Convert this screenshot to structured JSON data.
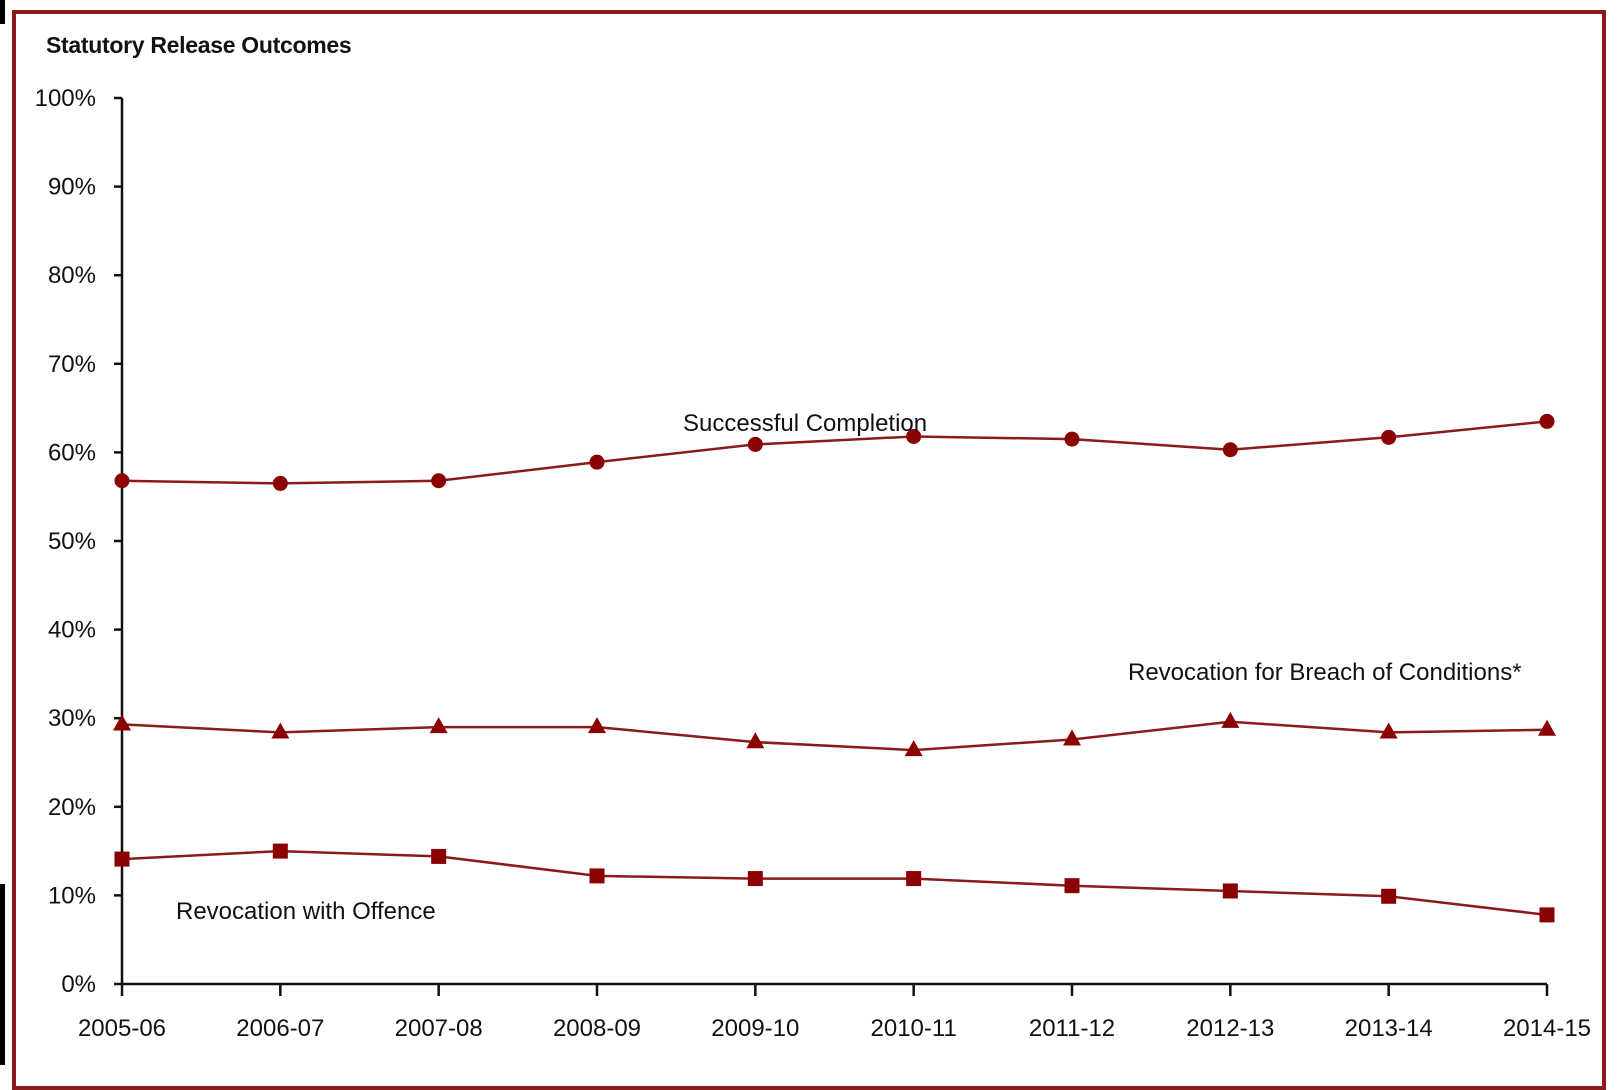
{
  "chart_data": {
    "type": "line",
    "title": "Statutory Release Outcomes",
    "xlabel": "",
    "ylabel": "",
    "categories": [
      "2005-06",
      "2006-07",
      "2007-08",
      "2008-09",
      "2009-10",
      "2010-11",
      "2011-12",
      "2012-13",
      "2013-14",
      "2014-15"
    ],
    "ylim": [
      0,
      100
    ],
    "y_ticks": [
      "0%",
      "10%",
      "20%",
      "30%",
      "40%",
      "50%",
      "60%",
      "70%",
      "80%",
      "90%",
      "100%"
    ],
    "grid": false,
    "legend": "none",
    "series": [
      {
        "name": "Successful Completion",
        "marker": "circle",
        "values": [
          56.8,
          56.5,
          56.8,
          58.9,
          60.9,
          61.8,
          61.5,
          60.3,
          61.7,
          63.5
        ]
      },
      {
        "name": "Revocation for Breach of Conditions*",
        "marker": "triangle",
        "values": [
          29.3,
          28.4,
          29.0,
          29.0,
          27.3,
          26.4,
          27.6,
          29.6,
          28.4,
          28.7
        ]
      },
      {
        "name": "Revocation with Offence",
        "marker": "square",
        "values": [
          14.1,
          15.0,
          14.4,
          12.2,
          11.9,
          11.9,
          11.1,
          10.5,
          9.9,
          7.8
        ]
      }
    ],
    "colors": {
      "line": "#8b1a1a",
      "marker": "#8b0000",
      "frame": "#8b1a1a",
      "axis": "#111111"
    }
  }
}
